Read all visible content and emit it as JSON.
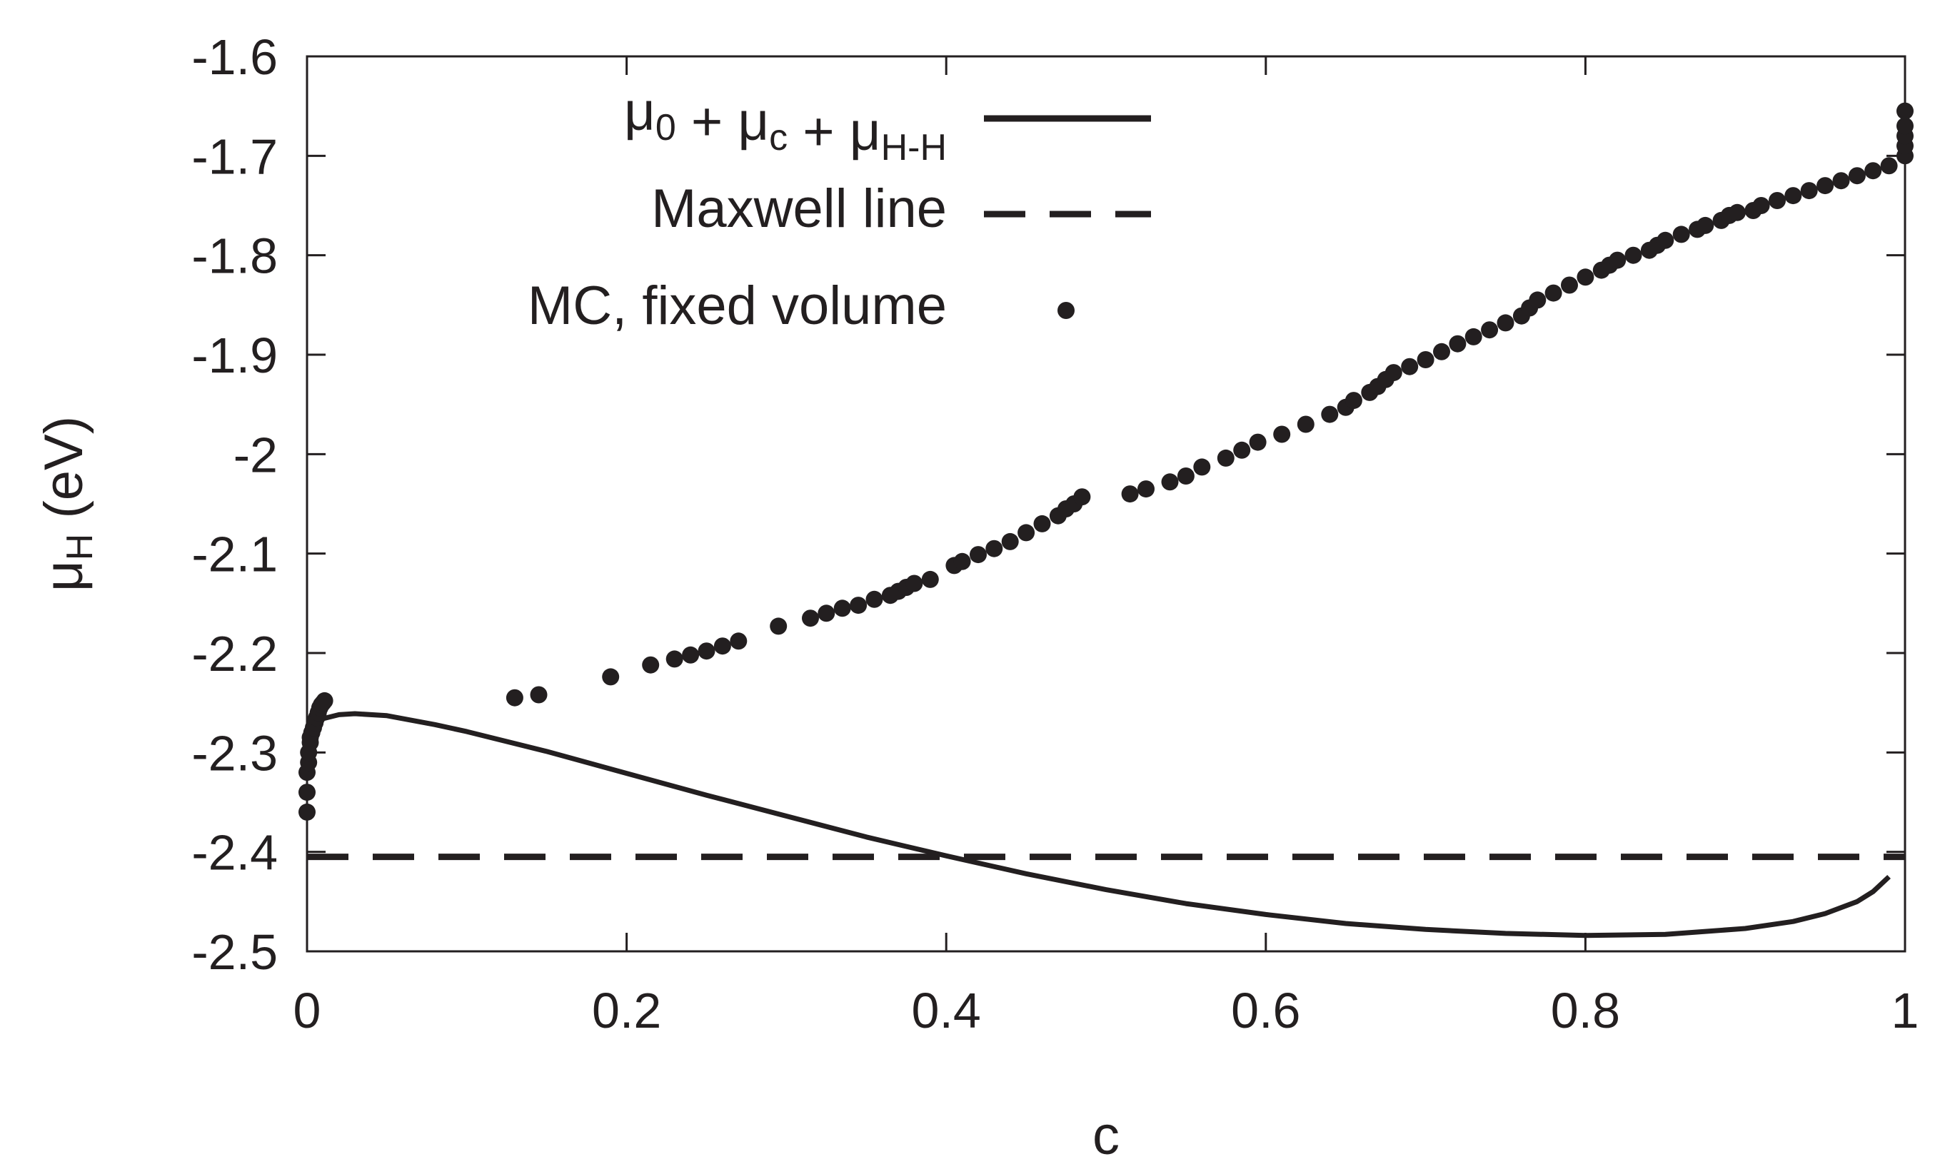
{
  "chart_data": {
    "type": "line",
    "title": "",
    "xlabel": "c",
    "ylabel_main": "μ",
    "ylabel_sub": "H",
    "ylabel_unit": " (eV)",
    "xlim": [
      0,
      1
    ],
    "ylim": [
      -2.5,
      -1.6
    ],
    "xticks": [
      0,
      0.2,
      0.4,
      0.6,
      0.8,
      1
    ],
    "xtick_labels": [
      "0",
      "0.2",
      "0.4",
      "0.6",
      "0.8",
      "1"
    ],
    "yticks": [
      -2.5,
      -2.4,
      -2.3,
      -2.2,
      -2.1,
      -2.0,
      -1.9,
      -1.8,
      -1.7,
      -1.6
    ],
    "ytick_labels": [
      "-2.5",
      "-2.4",
      "-2.3",
      "-2.2",
      "-2.1",
      "-2",
      "-1.9",
      "-1.8",
      "-1.7",
      "-1.6"
    ],
    "grid": false,
    "legend_position": "top-left",
    "series": [
      {
        "name": "μ0 + μc + μH-H",
        "legend_parts": [
          {
            "text": "μ",
            "sub": "0"
          },
          {
            "text": " + μ",
            "sub": "c"
          },
          {
            "text": " + μ",
            "sub": "H-H"
          }
        ],
        "style": "solid",
        "color": "#231f20",
        "x": [
          0.0,
          0.005,
          0.01,
          0.02,
          0.03,
          0.05,
          0.08,
          0.1,
          0.15,
          0.2,
          0.25,
          0.3,
          0.35,
          0.4,
          0.45,
          0.5,
          0.55,
          0.6,
          0.65,
          0.7,
          0.75,
          0.8,
          0.85,
          0.9,
          0.93,
          0.95,
          0.97,
          0.98,
          0.99
        ],
        "y": [
          -2.285,
          -2.272,
          -2.266,
          -2.262,
          -2.261,
          -2.263,
          -2.272,
          -2.279,
          -2.299,
          -2.321,
          -2.343,
          -2.364,
          -2.385,
          -2.404,
          -2.422,
          -2.438,
          -2.452,
          -2.463,
          -2.472,
          -2.478,
          -2.482,
          -2.484,
          -2.483,
          -2.477,
          -2.47,
          -2.462,
          -2.45,
          -2.44,
          -2.425
        ]
      },
      {
        "name": "Maxwell line",
        "style": "dashed",
        "color": "#231f20",
        "x": [
          0,
          1
        ],
        "y": [
          -2.405,
          -2.405
        ]
      },
      {
        "name": "MC, fixed volume",
        "style": "points",
        "color": "#231f20",
        "x": [
          0.0,
          0.0,
          0.0,
          0.001,
          0.001,
          0.002,
          0.002,
          0.003,
          0.004,
          0.005,
          0.006,
          0.007,
          0.008,
          0.009,
          0.01,
          0.011,
          0.13,
          0.145,
          0.19,
          0.215,
          0.23,
          0.24,
          0.25,
          0.26,
          0.27,
          0.295,
          0.315,
          0.325,
          0.335,
          0.345,
          0.355,
          0.365,
          0.37,
          0.375,
          0.38,
          0.39,
          0.405,
          0.41,
          0.42,
          0.43,
          0.44,
          0.45,
          0.46,
          0.47,
          0.475,
          0.48,
          0.485,
          0.515,
          0.525,
          0.54,
          0.55,
          0.56,
          0.575,
          0.585,
          0.595,
          0.61,
          0.625,
          0.64,
          0.65,
          0.655,
          0.665,
          0.67,
          0.675,
          0.68,
          0.69,
          0.7,
          0.71,
          0.72,
          0.73,
          0.74,
          0.75,
          0.76,
          0.765,
          0.77,
          0.78,
          0.79,
          0.8,
          0.81,
          0.815,
          0.82,
          0.83,
          0.84,
          0.845,
          0.85,
          0.86,
          0.87,
          0.875,
          0.885,
          0.89,
          0.895,
          0.905,
          0.91,
          0.92,
          0.93,
          0.94,
          0.95,
          0.96,
          0.97,
          0.98,
          0.99,
          1.0,
          1.0,
          1.0,
          1.0,
          1.0
        ],
        "y": [
          -2.36,
          -2.34,
          -2.32,
          -2.31,
          -2.3,
          -2.29,
          -2.285,
          -2.28,
          -2.275,
          -2.27,
          -2.265,
          -2.26,
          -2.255,
          -2.252,
          -2.25,
          -2.248,
          -2.245,
          -2.242,
          -2.224,
          -2.212,
          -2.206,
          -2.202,
          -2.198,
          -2.193,
          -2.188,
          -2.173,
          -2.165,
          -2.16,
          -2.155,
          -2.152,
          -2.146,
          -2.142,
          -2.138,
          -2.134,
          -2.13,
          -2.126,
          -2.112,
          -2.108,
          -2.101,
          -2.095,
          -2.088,
          -2.079,
          -2.07,
          -2.062,
          -2.055,
          -2.05,
          -2.043,
          -2.04,
          -2.035,
          -2.028,
          -2.022,
          -2.013,
          -2.004,
          -1.996,
          -1.988,
          -1.98,
          -1.97,
          -1.96,
          -1.953,
          -1.946,
          -1.938,
          -1.932,
          -1.925,
          -1.918,
          -1.912,
          -1.905,
          -1.897,
          -1.889,
          -1.882,
          -1.875,
          -1.868,
          -1.861,
          -1.853,
          -1.845,
          -1.838,
          -1.83,
          -1.822,
          -1.815,
          -1.81,
          -1.805,
          -1.8,
          -1.795,
          -1.79,
          -1.785,
          -1.779,
          -1.774,
          -1.77,
          -1.765,
          -1.76,
          -1.757,
          -1.755,
          -1.75,
          -1.745,
          -1.74,
          -1.735,
          -1.73,
          -1.725,
          -1.72,
          -1.715,
          -1.71,
          -1.7,
          -1.69,
          -1.68,
          -1.67,
          -1.655
        ]
      }
    ]
  }
}
